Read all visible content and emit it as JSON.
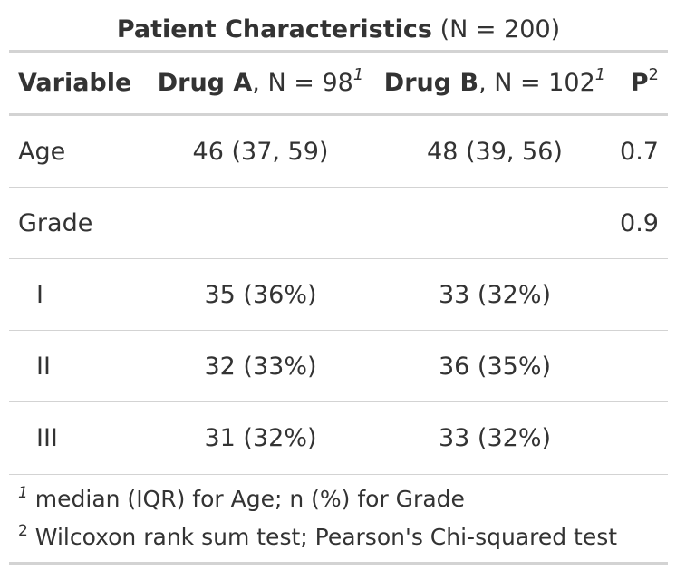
{
  "title": {
    "bold": "Patient Characteristics",
    "rest": " (N = 200)"
  },
  "header": {
    "variable": "Variable",
    "drug_a_bold": "Drug A",
    "drug_a_rest": ", N = 98",
    "drug_a_sup": "1",
    "drug_b_bold": "Drug B",
    "drug_b_rest": ", N = 102",
    "drug_b_sup": "1",
    "p_bold": "P",
    "p_sup": "2"
  },
  "rows": [
    {
      "variable": "Age",
      "drug_a": "46 (37, 59)",
      "drug_b": "48 (39, 56)",
      "p": "0.7"
    },
    {
      "variable": "Grade",
      "drug_a": "",
      "drug_b": "",
      "p": "0.9"
    },
    {
      "variable": "I",
      "drug_a": "35 (36%)",
      "drug_b": "33 (32%)",
      "p": ""
    },
    {
      "variable": "II",
      "drug_a": "32 (33%)",
      "drug_b": "36 (35%)",
      "p": ""
    },
    {
      "variable": "III",
      "drug_a": "31 (32%)",
      "drug_b": "33 (32%)",
      "p": ""
    }
  ],
  "footnotes": [
    {
      "marker": "1",
      "text": " median (IQR) for Age; n (%) for Grade"
    },
    {
      "marker": "2",
      "text": " Wilcoxon rank sum test; Pearson's Chi-squared test"
    }
  ]
}
